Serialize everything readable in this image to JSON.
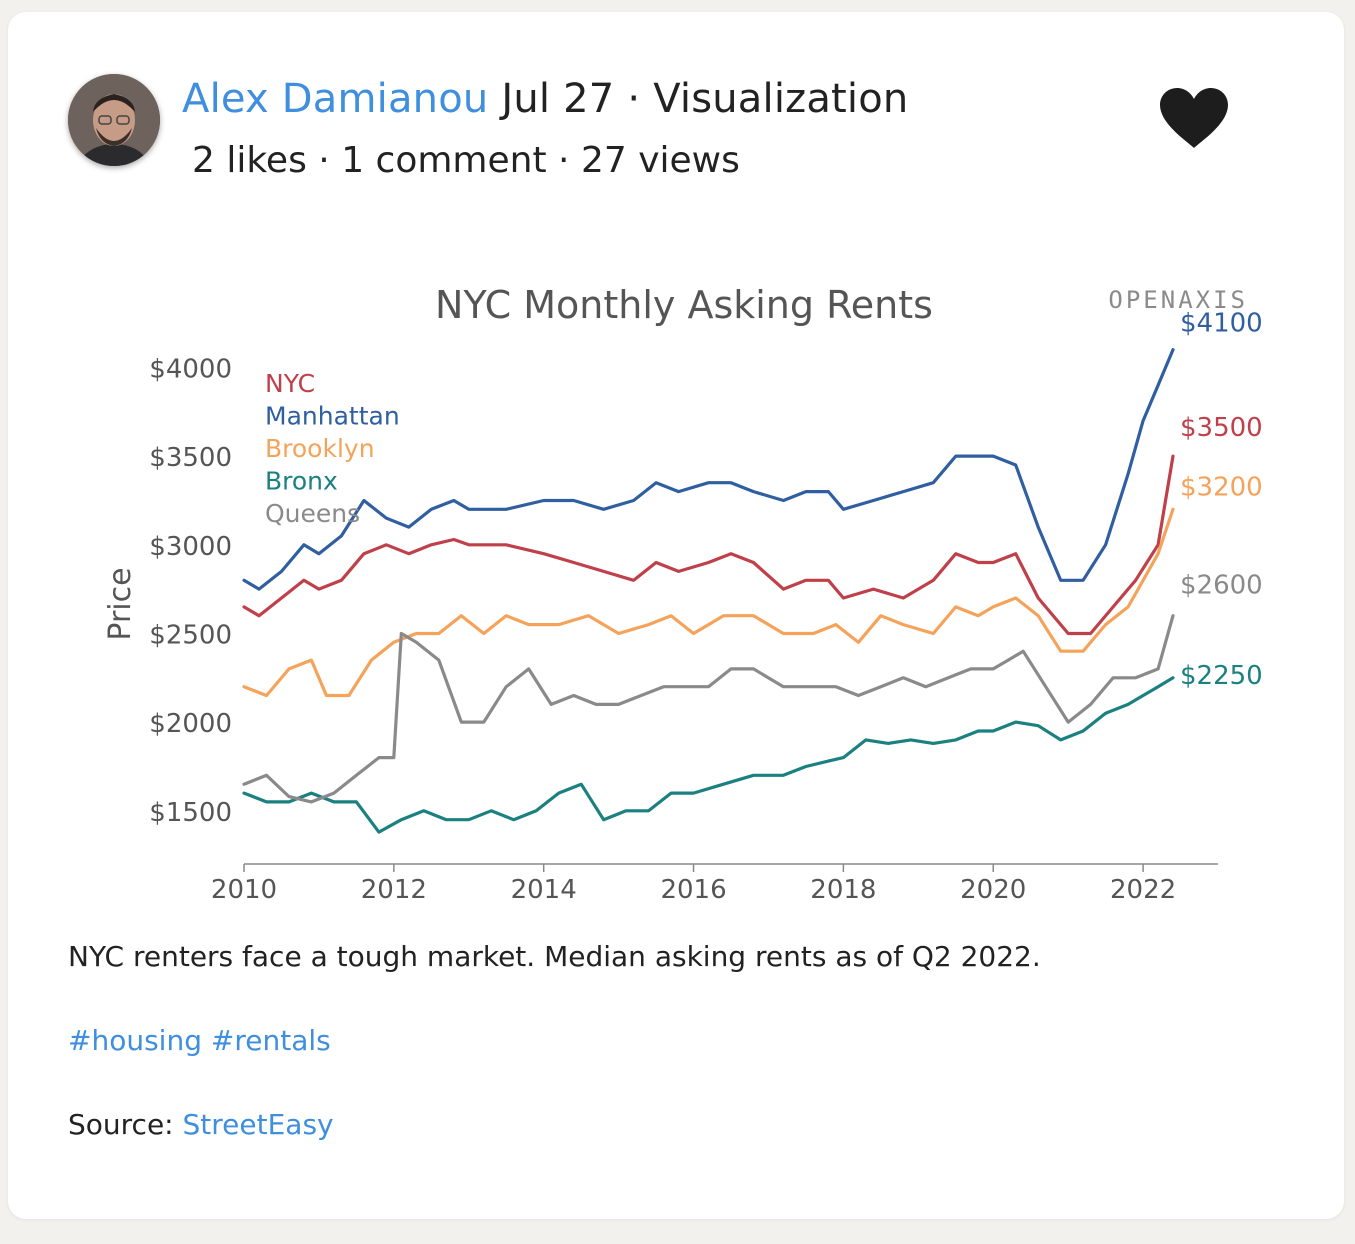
{
  "post": {
    "author": "Alex Damianou",
    "date": "Jul 27",
    "separator": "·",
    "category": "Visualization",
    "likes": "2 likes",
    "comments": "1 comment",
    "views": "27 views",
    "caption": "NYC renters face a tough market. Median asking rents as of Q2 2022.",
    "tags": [
      "#housing",
      "#rentals"
    ],
    "source_label": "Source:",
    "source_link": "StreetEasy",
    "heart_icon": "heart-icon",
    "avatar_icon": "avatar"
  },
  "chart_data": {
    "type": "line",
    "title": "NYC Monthly Asking Rents",
    "brand": "OPENAXIS",
    "ylabel": "Price",
    "xlabel": "",
    "xlim": [
      2010,
      2023
    ],
    "ylim": [
      1200,
      4200
    ],
    "x_ticks": [
      2010,
      2012,
      2014,
      2016,
      2018,
      2020,
      2022
    ],
    "y_ticks": [
      {
        "value": 1500,
        "label": "$1500"
      },
      {
        "value": 2000,
        "label": "$2000"
      },
      {
        "value": 2500,
        "label": "$2500"
      },
      {
        "value": 3000,
        "label": "$3000"
      },
      {
        "value": 3500,
        "label": "$3500"
      },
      {
        "value": 4000,
        "label": "$4000"
      }
    ],
    "grid": false,
    "legend_position": "top-left",
    "series": [
      {
        "name": "NYC",
        "color": "#c0404a",
        "end_label": "$3500",
        "x": [
          2010.0,
          2010.2,
          2010.5,
          2010.8,
          2011.0,
          2011.3,
          2011.6,
          2011.9,
          2012.2,
          2012.5,
          2012.8,
          2013.0,
          2013.5,
          2014.0,
          2014.4,
          2014.8,
          2015.2,
          2015.5,
          2015.8,
          2016.2,
          2016.5,
          2016.8,
          2017.2,
          2017.5,
          2017.8,
          2018.0,
          2018.4,
          2018.8,
          2019.2,
          2019.5,
          2019.8,
          2020.0,
          2020.3,
          2020.6,
          2021.0,
          2021.3,
          2021.6,
          2021.9,
          2022.2,
          2022.4
        ],
        "y": [
          2650,
          2600,
          2700,
          2800,
          2750,
          2800,
          2950,
          3000,
          2950,
          3000,
          3030,
          3000,
          3000,
          2950,
          2900,
          2850,
          2800,
          2900,
          2850,
          2900,
          2950,
          2900,
          2750,
          2800,
          2800,
          2700,
          2750,
          2700,
          2800,
          2950,
          2900,
          2900,
          2950,
          2700,
          2500,
          2500,
          2650,
          2800,
          3000,
          3500
        ]
      },
      {
        "name": "Manhattan",
        "color": "#2f5fa0",
        "end_label": "$4100",
        "x": [
          2010.0,
          2010.2,
          2010.5,
          2010.8,
          2011.0,
          2011.3,
          2011.6,
          2011.9,
          2012.2,
          2012.5,
          2012.8,
          2013.0,
          2013.5,
          2014.0,
          2014.4,
          2014.8,
          2015.2,
          2015.5,
          2015.8,
          2016.2,
          2016.5,
          2016.8,
          2017.2,
          2017.5,
          2017.8,
          2018.0,
          2018.4,
          2018.8,
          2019.2,
          2019.5,
          2019.8,
          2020.0,
          2020.3,
          2020.6,
          2020.9,
          2021.2,
          2021.5,
          2021.8,
          2022.0,
          2022.2,
          2022.4
        ],
        "y": [
          2800,
          2750,
          2850,
          3000,
          2950,
          3050,
          3250,
          3150,
          3100,
          3200,
          3250,
          3200,
          3200,
          3250,
          3250,
          3200,
          3250,
          3350,
          3300,
          3350,
          3350,
          3300,
          3250,
          3300,
          3300,
          3200,
          3250,
          3300,
          3350,
          3500,
          3500,
          3500,
          3450,
          3100,
          2800,
          2800,
          3000,
          3400,
          3700,
          3900,
          4100
        ]
      },
      {
        "name": "Brooklyn",
        "color": "#f5a35a",
        "end_label": "$3200",
        "x": [
          2010.0,
          2010.3,
          2010.6,
          2010.9,
          2011.1,
          2011.4,
          2011.7,
          2012.0,
          2012.3,
          2012.6,
          2012.9,
          2013.2,
          2013.5,
          2013.8,
          2014.2,
          2014.6,
          2015.0,
          2015.4,
          2015.7,
          2016.0,
          2016.4,
          2016.8,
          2017.2,
          2017.6,
          2017.9,
          2018.2,
          2018.5,
          2018.8,
          2019.2,
          2019.5,
          2019.8,
          2020.0,
          2020.3,
          2020.6,
          2020.9,
          2021.2,
          2021.5,
          2021.8,
          2022.0,
          2022.2,
          2022.4
        ],
        "y": [
          2200,
          2150,
          2300,
          2350,
          2150,
          2150,
          2350,
          2450,
          2500,
          2500,
          2600,
          2500,
          2600,
          2550,
          2550,
          2600,
          2500,
          2550,
          2600,
          2500,
          2600,
          2600,
          2500,
          2500,
          2550,
          2450,
          2600,
          2550,
          2500,
          2650,
          2600,
          2650,
          2700,
          2600,
          2400,
          2400,
          2550,
          2650,
          2800,
          2950,
          3200
        ]
      },
      {
        "name": "Bronx",
        "color": "#1a8080",
        "end_label": "$2250",
        "x": [
          2010.0,
          2010.3,
          2010.6,
          2010.9,
          2011.2,
          2011.5,
          2011.8,
          2012.1,
          2012.4,
          2012.7,
          2013.0,
          2013.3,
          2013.6,
          2013.9,
          2014.2,
          2014.5,
          2014.8,
          2015.1,
          2015.4,
          2015.7,
          2016.0,
          2016.4,
          2016.8,
          2017.2,
          2017.5,
          2017.8,
          2018.0,
          2018.3,
          2018.6,
          2018.9,
          2019.2,
          2019.5,
          2019.8,
          2020.0,
          2020.3,
          2020.6,
          2020.9,
          2021.2,
          2021.5,
          2021.8,
          2022.0,
          2022.2,
          2022.4
        ],
        "y": [
          1600,
          1550,
          1550,
          1600,
          1550,
          1550,
          1380,
          1450,
          1500,
          1450,
          1450,
          1500,
          1450,
          1500,
          1600,
          1650,
          1450,
          1500,
          1500,
          1600,
          1600,
          1650,
          1700,
          1700,
          1750,
          1780,
          1800,
          1900,
          1880,
          1900,
          1880,
          1900,
          1950,
          1950,
          2000,
          1980,
          1900,
          1950,
          2050,
          2100,
          2150,
          2200,
          2250
        ]
      },
      {
        "name": "Queens",
        "color": "#8a8a8a",
        "end_label": "$2600",
        "x": [
          2010.0,
          2010.3,
          2010.6,
          2010.9,
          2011.2,
          2011.5,
          2011.8,
          2012.0,
          2012.1,
          2012.3,
          2012.6,
          2012.9,
          2013.2,
          2013.5,
          2013.8,
          2014.1,
          2014.4,
          2014.7,
          2015.0,
          2015.3,
          2015.6,
          2015.9,
          2016.2,
          2016.5,
          2016.8,
          2017.2,
          2017.6,
          2017.9,
          2018.2,
          2018.5,
          2018.8,
          2019.1,
          2019.4,
          2019.7,
          2020.0,
          2020.2,
          2020.4,
          2020.7,
          2021.0,
          2021.3,
          2021.6,
          2021.9,
          2022.2,
          2022.4
        ],
        "y": [
          1650,
          1700,
          1580,
          1550,
          1600,
          1700,
          1800,
          1800,
          2500,
          2450,
          2350,
          2000,
          2000,
          2200,
          2300,
          2100,
          2150,
          2100,
          2100,
          2150,
          2200,
          2200,
          2200,
          2300,
          2300,
          2200,
          2200,
          2200,
          2150,
          2200,
          2250,
          2200,
          2250,
          2300,
          2300,
          2350,
          2400,
          2200,
          2000,
          2100,
          2250,
          2250,
          2300,
          2600
        ]
      }
    ]
  }
}
